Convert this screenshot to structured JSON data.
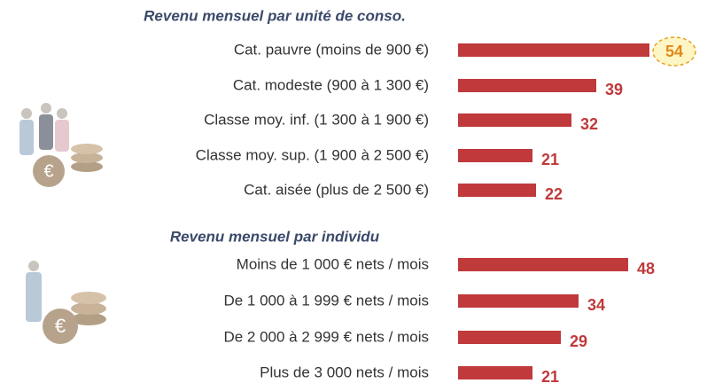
{
  "chart_data": [
    {
      "type": "bar",
      "orientation": "horizontal",
      "title": "Revenu mensuel par unité de conso.",
      "categories": [
        "Cat. pauvre (moins de 900 €)",
        "Cat. modeste (900 à 1 300 €)",
        "Classe moy. inf. (1 300 à 1 900 €)",
        "Classe moy. sup. (1 900 à 2 500 €)",
        "Cat. aisée (plus de 2 500 €)"
      ],
      "values": [
        54,
        39,
        32,
        21,
        22
      ],
      "color": "#c0393b",
      "highlight": 0
    },
    {
      "type": "bar",
      "orientation": "horizontal",
      "title": "Revenu mensuel par individu",
      "categories": [
        "Moins de 1 000 € nets / mois",
        "De 1 000 à 1 999 € nets / mois",
        "De 2 000 à 2 999 € nets / mois",
        "Plus de 3 000 nets / mois"
      ],
      "values": [
        48,
        34,
        29,
        21
      ],
      "color": "#c0393b"
    }
  ]
}
